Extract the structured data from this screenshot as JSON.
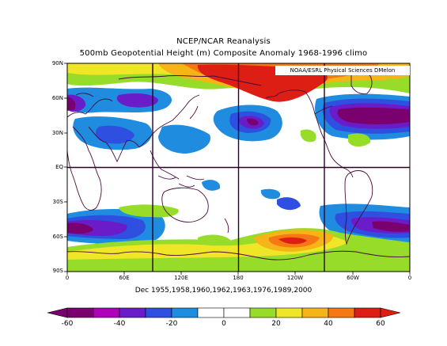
{
  "title_line1": "NCEP/NCAR Reanalysis",
  "title_line2": "500mb Geopotential Height (m) Composite Anomaly 1968-1996 climo",
  "credit": "NOAA/ESRL Physical Sciences DMelon",
  "caption": "Dec 1955,1958,1960,1962,1963,1976,1989,2000",
  "lat_labels": [
    "90N",
    "60N",
    "30N",
    "EQ",
    "30S",
    "60S",
    "90S"
  ],
  "lon_labels": [
    "0",
    "60E",
    "120E",
    "180",
    "120W",
    "60W",
    "0"
  ],
  "colorbar": {
    "labels": [
      "-60",
      "-40",
      "-20",
      "0",
      "20",
      "40",
      "60"
    ],
    "colors": [
      "#7a0070",
      "#b000b8",
      "#6a1cc8",
      "#2f4fe0",
      "#1f8ce0",
      "#ffffff",
      "#ffffff",
      "#96dc28",
      "#f0e628",
      "#f5b418",
      "#f57814",
      "#dc1e14"
    ]
  },
  "palette": {
    "neg60": "#7a0070",
    "neg50": "#b000b8",
    "neg40": "#6a1cc8",
    "neg30": "#2f4fe0",
    "neg20": "#1f8ce0",
    "pos20": "#96dc28",
    "pos30": "#f0e628",
    "pos40": "#f5b418",
    "pos50": "#f57814",
    "pos60": "#dc1e14"
  }
}
